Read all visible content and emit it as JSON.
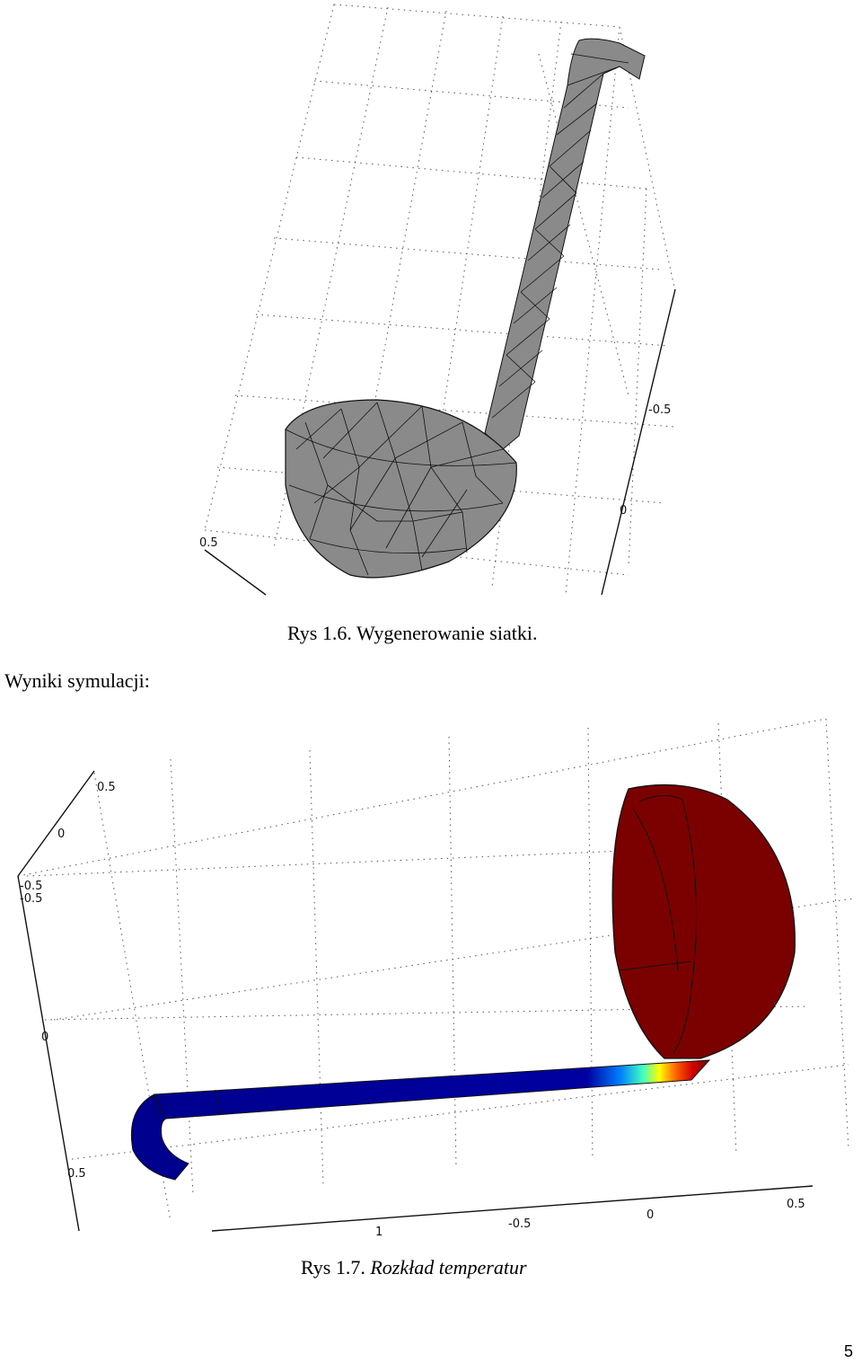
{
  "figure1": {
    "caption": "Rys 1.6. Wygenerowanie siatki.",
    "ticks": [
      "-0.5",
      "0",
      "0.5"
    ]
  },
  "section_heading": "Wyniki symulacji:",
  "figure2": {
    "caption_prefix": "Rys 1.7.",
    "caption_italic": "Rozkład temperatur",
    "ticks_left": [
      "0.5",
      "0",
      "-0.5",
      "-0.5",
      "0",
      "0.5"
    ],
    "ticks_bottom": [
      "1",
      "-0.5",
      "0",
      "0.5"
    ]
  },
  "page_number": "5",
  "colors": {
    "mesh_fill": "#8a8a8a",
    "hot": "#7b0000",
    "cold": "#00008f"
  }
}
